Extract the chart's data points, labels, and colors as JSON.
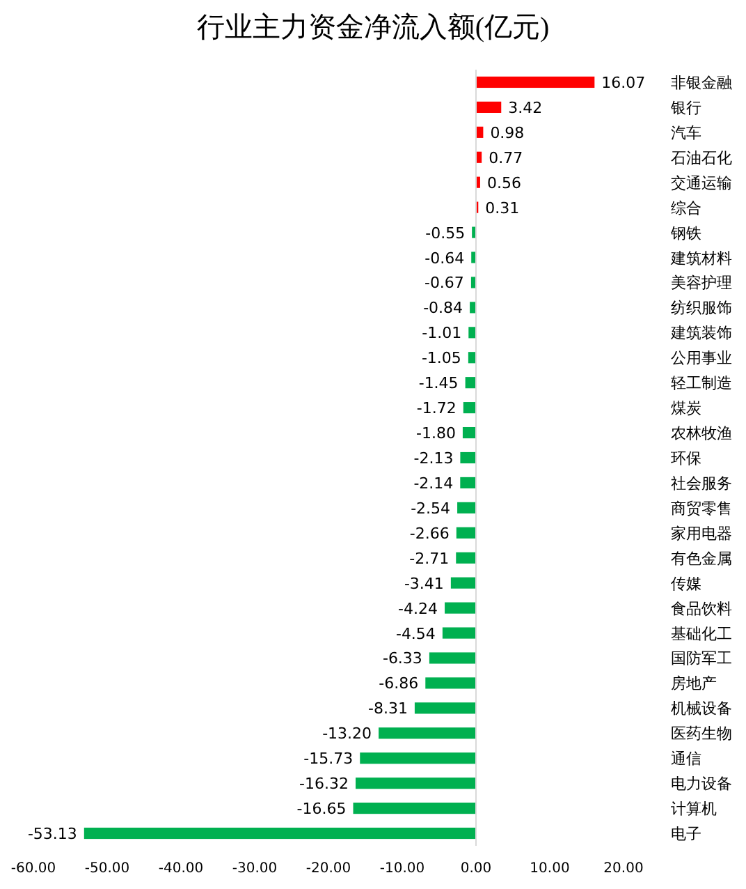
{
  "chart_data": {
    "type": "bar",
    "orientation": "horizontal",
    "title": "行业主力资金净流入额(亿元)",
    "categories": [
      "非银金融",
      "银行",
      "汽车",
      "石油石化",
      "交通运输",
      "综合",
      "钢铁",
      "建筑材料",
      "美容护理",
      "纺织服饰",
      "建筑装饰",
      "公用事业",
      "轻工制造",
      "煤炭",
      "农林牧渔",
      "环保",
      "社会服务",
      "商贸零售",
      "家用电器",
      "有色金属",
      "传媒",
      "食品饮料",
      "基础化工",
      "国防军工",
      "房地产",
      "机械设备",
      "医药生物",
      "通信",
      "电力设备",
      "计算机",
      "电子"
    ],
    "values": [
      16.07,
      3.42,
      0.98,
      0.77,
      0.56,
      0.31,
      -0.55,
      -0.64,
      -0.67,
      -0.84,
      -1.01,
      -1.05,
      -1.45,
      -1.72,
      -1.8,
      -2.13,
      -2.14,
      -2.54,
      -2.66,
      -2.71,
      -3.41,
      -4.24,
      -4.54,
      -6.33,
      -6.86,
      -8.31,
      -13.2,
      -15.73,
      -16.32,
      -16.65,
      -53.13
    ],
    "value_labels": [
      "16.07",
      "3.42",
      "0.98",
      "0.77",
      "0.56",
      "0.31",
      "-0.55",
      "-0.64",
      "-0.67",
      "-0.84",
      "-1.01",
      "-1.05",
      "-1.45",
      "-1.72",
      "-1.80",
      "-2.13",
      "-2.14",
      "-2.54",
      "-2.66",
      "-2.71",
      "-3.41",
      "-4.24",
      "-4.54",
      "-6.33",
      "-6.86",
      "-8.31",
      "-13.20",
      "-15.73",
      "-16.32",
      "-16.65",
      "-53.13"
    ],
    "colors": [
      "#ff0000",
      "#ff0000",
      "#ff0000",
      "#ff0000",
      "#ff0000",
      "#ff0000",
      "#00b050",
      "#00b050",
      "#00b050",
      "#00b050",
      "#00b050",
      "#00b050",
      "#00b050",
      "#00b050",
      "#00b050",
      "#00b050",
      "#00b050",
      "#00b050",
      "#00b050",
      "#00b050",
      "#00b050",
      "#00b050",
      "#00b050",
      "#00b050",
      "#00b050",
      "#00b050",
      "#00b050",
      "#00b050",
      "#00b050",
      "#00b050",
      "#00b050"
    ],
    "xlim": [
      -60,
      20
    ],
    "xticks": [
      {
        "value": -60,
        "label": "-60.00"
      },
      {
        "value": -50,
        "label": "-50.00"
      },
      {
        "value": -40,
        "label": "-40.00"
      },
      {
        "value": -30,
        "label": "-30.00"
      },
      {
        "value": -20,
        "label": "-20.00"
      },
      {
        "value": -10,
        "label": "-10.00"
      },
      {
        "value": 0,
        "label": "0.00"
      },
      {
        "value": 10,
        "label": "10.00"
      },
      {
        "value": 20,
        "label": "20.00"
      }
    ]
  }
}
